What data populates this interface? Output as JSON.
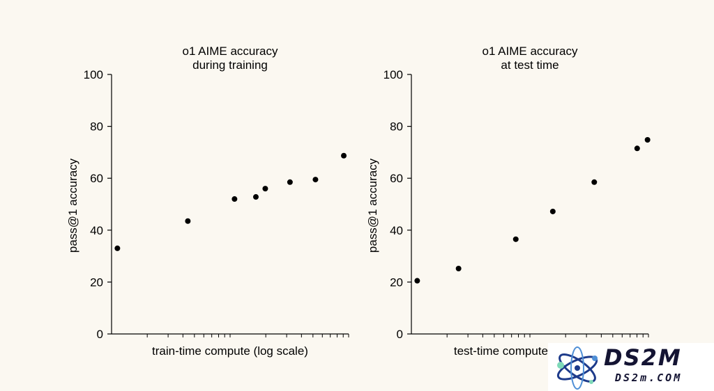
{
  "chart_data": [
    {
      "type": "scatter",
      "title": [
        "o1 AIME accuracy",
        "during training"
      ],
      "xlabel": "train-time compute (log scale)",
      "ylabel": "pass@1 accuracy",
      "xscale": "log",
      "xlim": [
        1,
        100
      ],
      "ylim": [
        0,
        100
      ],
      "yticks": [
        0,
        20,
        40,
        60,
        80,
        100
      ],
      "grid": false,
      "point_color": "#000000",
      "points": [
        {
          "x": 1.12,
          "y": 33
        },
        {
          "x": 4.4,
          "y": 43.5
        },
        {
          "x": 10.9,
          "y": 52
        },
        {
          "x": 16.5,
          "y": 52.8
        },
        {
          "x": 19.8,
          "y": 56
        },
        {
          "x": 32,
          "y": 58.5
        },
        {
          "x": 52.5,
          "y": 59.5
        },
        {
          "x": 91,
          "y": 68.7
        }
      ]
    },
    {
      "type": "scatter",
      "title": [
        "o1 AIME accuracy",
        "at test time"
      ],
      "xlabel": "test-time compute (log scale)",
      "ylabel": "pass@1 accuracy",
      "xscale": "log",
      "xlim": [
        1,
        100
      ],
      "ylim": [
        0,
        100
      ],
      "yticks": [
        0,
        20,
        40,
        60,
        80,
        100
      ],
      "grid": false,
      "point_color": "#000000",
      "points": [
        {
          "x": 1.12,
          "y": 20.5
        },
        {
          "x": 2.5,
          "y": 25.2
        },
        {
          "x": 7.6,
          "y": 36.5
        },
        {
          "x": 15.6,
          "y": 47.2
        },
        {
          "x": 34.9,
          "y": 58.5
        },
        {
          "x": 80.3,
          "y": 71.5
        },
        {
          "x": 98.2,
          "y": 74.8
        }
      ]
    }
  ],
  "watermark": {
    "brand": "DS2M",
    "domain": "DS2m.COM"
  }
}
